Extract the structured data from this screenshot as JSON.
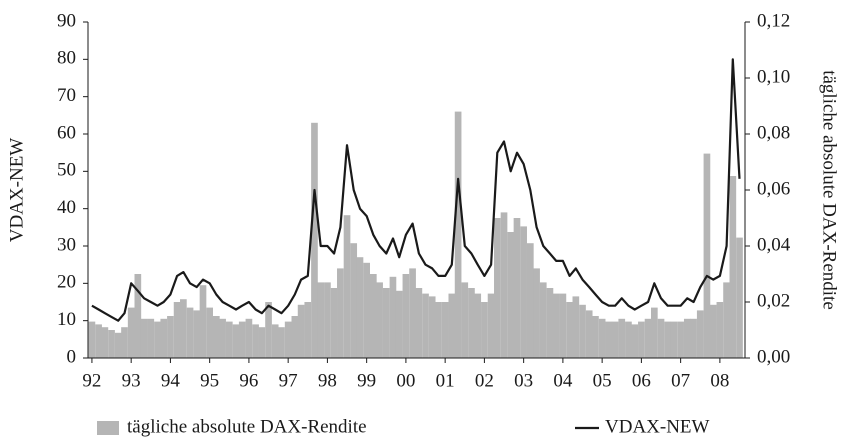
{
  "chart_data": {
    "type": "bar-line",
    "y_label": "VDAX-NEW",
    "y2_label": "tägliche absolute DAX-Rendite",
    "x": [
      1992.5,
      1992.67,
      1992.83,
      1993,
      1993.17,
      1993.33,
      1993.5,
      1993.67,
      1993.83,
      1994,
      1994.17,
      1994.33,
      1994.5,
      1994.67,
      1994.83,
      1995,
      1995.17,
      1995.33,
      1995.5,
      1995.67,
      1995.83,
      1996,
      1996.17,
      1996.33,
      1996.5,
      1996.67,
      1996.83,
      1997,
      1997.17,
      1997.33,
      1997.5,
      1997.67,
      1997.83,
      1998,
      1998.17,
      1998.33,
      1998.5,
      1998.67,
      1998.83,
      1999,
      1999.17,
      1999.33,
      1999.5,
      1999.67,
      1999.83,
      2000,
      2000.17,
      2000.33,
      2000.5,
      2000.67,
      2000.83,
      2001,
      2001.17,
      2001.33,
      2001.5,
      2001.67,
      2001.83,
      2002,
      2002.17,
      2002.33,
      2002.5,
      2002.67,
      2002.83,
      2003,
      2003.17,
      2003.33,
      2003.5,
      2003.67,
      2003.83,
      2004,
      2004.17,
      2004.33,
      2004.5,
      2004.67,
      2004.83,
      2005,
      2005.17,
      2005.33,
      2005.5,
      2005.67,
      2005.83,
      2006,
      2006.17,
      2006.33,
      2006.5,
      2006.67,
      2006.83,
      2007,
      2007.17,
      2007.33,
      2007.5,
      2007.67,
      2007.83,
      2008,
      2008.17,
      2008.33,
      2008.5,
      2008.67,
      2008.83,
      2009
    ],
    "series": [
      {
        "name": "tägliche absolute DAX-Rendite",
        "color": "#b5b5b5",
        "axis": "y2",
        "kind": "bar",
        "values": [
          0.013,
          0.012,
          0.011,
          0.01,
          0.009,
          0.011,
          0.018,
          0.03,
          0.014,
          0.014,
          0.013,
          0.014,
          0.015,
          0.02,
          0.021,
          0.018,
          0.017,
          0.026,
          0.018,
          0.015,
          0.014,
          0.013,
          0.012,
          0.013,
          0.014,
          0.012,
          0.011,
          0.02,
          0.012,
          0.011,
          0.013,
          0.015,
          0.019,
          0.02,
          0.084,
          0.027,
          0.027,
          0.025,
          0.032,
          0.051,
          0.041,
          0.036,
          0.034,
          0.03,
          0.027,
          0.025,
          0.029,
          0.024,
          0.03,
          0.032,
          0.025,
          0.023,
          0.022,
          0.02,
          0.02,
          0.023,
          0.088,
          0.027,
          0.025,
          0.023,
          0.02,
          0.023,
          0.05,
          0.052,
          0.045,
          0.05,
          0.047,
          0.041,
          0.032,
          0.027,
          0.025,
          0.023,
          0.023,
          0.02,
          0.022,
          0.019,
          0.017,
          0.015,
          0.014,
          0.013,
          0.013,
          0.014,
          0.013,
          0.012,
          0.013,
          0.014,
          0.018,
          0.014,
          0.013,
          0.013,
          0.013,
          0.014,
          0.014,
          0.017,
          0.073,
          0.019,
          0.02,
          0.027,
          0.065,
          0.043
        ]
      },
      {
        "name": "VDAX-NEW",
        "color": "#1a1a1a",
        "axis": "y",
        "kind": "line",
        "values": [
          14,
          13,
          12,
          11,
          10,
          12,
          20,
          18,
          16,
          15,
          14,
          15,
          17,
          22,
          23,
          20,
          19,
          21,
          20,
          17,
          15,
          14,
          13,
          14,
          15,
          13,
          12,
          14,
          13,
          12,
          14,
          17,
          21,
          22,
          45,
          30,
          30,
          28,
          35,
          57,
          45,
          40,
          38,
          33,
          30,
          28,
          32,
          27,
          33,
          36,
          28,
          25,
          24,
          22,
          22,
          25,
          48,
          30,
          28,
          25,
          22,
          25,
          55,
          58,
          50,
          55,
          52,
          45,
          35,
          30,
          28,
          26,
          26,
          22,
          24,
          21,
          19,
          17,
          15,
          14,
          14,
          16,
          14,
          13,
          14,
          15,
          20,
          16,
          14,
          14,
          14,
          16,
          15,
          19,
          22,
          21,
          22,
          30,
          80,
          48
        ]
      }
    ],
    "xlim": [
      1992.4,
      2009.14
    ],
    "xticks": [
      {
        "value": 1992.5,
        "label": "92"
      },
      {
        "value": 1993.5,
        "label": "93"
      },
      {
        "value": 1994.5,
        "label": "94"
      },
      {
        "value": 1995.5,
        "label": "95"
      },
      {
        "value": 1996.5,
        "label": "96"
      },
      {
        "value": 1997.5,
        "label": "97"
      },
      {
        "value": 1998.5,
        "label": "98"
      },
      {
        "value": 1999.5,
        "label": "99"
      },
      {
        "value": 2000.5,
        "label": "00"
      },
      {
        "value": 2001.5,
        "label": "01"
      },
      {
        "value": 2002.5,
        "label": "02"
      },
      {
        "value": 2003.5,
        "label": "03"
      },
      {
        "value": 2004.5,
        "label": "04"
      },
      {
        "value": 2005.5,
        "label": "05"
      },
      {
        "value": 2006.5,
        "label": "06"
      },
      {
        "value": 2007.5,
        "label": "07"
      },
      {
        "value": 2008.5,
        "label": "08"
      }
    ],
    "ylim": [
      0,
      90
    ],
    "yticks": [
      0,
      10,
      20,
      30,
      40,
      50,
      60,
      70,
      80,
      90
    ],
    "y2lim": [
      0,
      0.12
    ],
    "y2ticks": [
      {
        "value": 0,
        "label": "0,00"
      },
      {
        "value": 0.02,
        "label": "0,02"
      },
      {
        "value": 0.04,
        "label": "0,04"
      },
      {
        "value": 0.06,
        "label": "0,06"
      },
      {
        "value": 0.08,
        "label": "0,08"
      },
      {
        "value": 0.1,
        "label": "0,10"
      },
      {
        "value": 0.12,
        "label": "0,12"
      }
    ],
    "legend": "bottom"
  }
}
